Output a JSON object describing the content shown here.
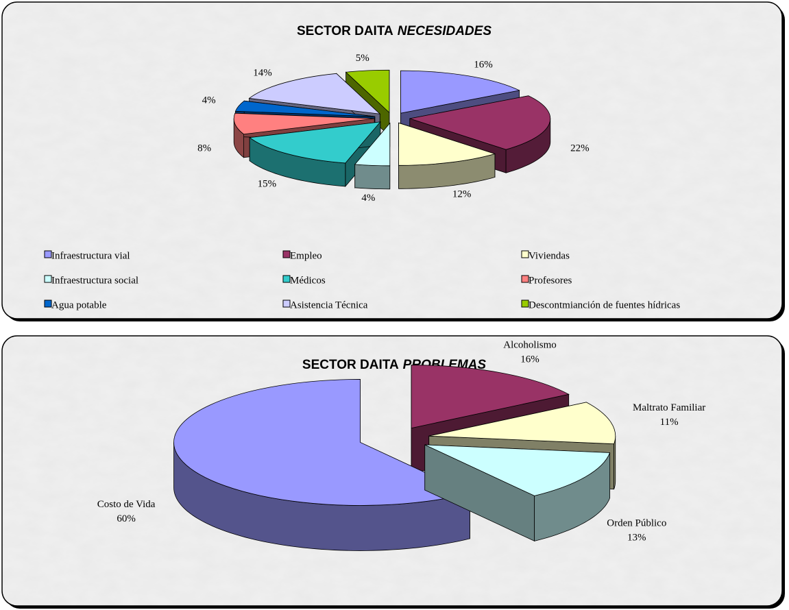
{
  "chart_data": [
    {
      "type": "pie",
      "title": "SECTOR DAITA",
      "title_italic": "NECESIDADES",
      "categories": [
        "Infraestructura vial",
        "Empleo",
        "Viviendas",
        "Infraestructura social",
        "Médicos",
        "Profesores",
        "Agua potable",
        "Asistencia Técnica",
        "Descontmianción de fuentes hídricas"
      ],
      "values": [
        16,
        22,
        12,
        4,
        15,
        8,
        4,
        14,
        5
      ],
      "value_labels": [
        "16%",
        "22%",
        "12%",
        "4%",
        "15%",
        "8%",
        "4%",
        "14%",
        "5%"
      ],
      "colors": [
        "#9999ff",
        "#993366",
        "#ffffcc",
        "#ccffff",
        "#33cccc",
        "#ff8080",
        "#0066cc",
        "#ccccff",
        "#99cc00"
      ],
      "legend": true,
      "label_categories": false
    },
    {
      "type": "pie",
      "title": "SECTOR DAITA",
      "title_italic": "PROBLEMAS",
      "categories": [
        "Alcoholismo",
        "Maltrato Familiar",
        "Orden Público",
        "Costo de Vida"
      ],
      "values": [
        16,
        11,
        13,
        60
      ],
      "value_labels": [
        "16%",
        "11%",
        "13%",
        "60%"
      ],
      "colors": [
        "#993366",
        "#ffffcc",
        "#ccffff",
        "#9999ff"
      ],
      "legend": false,
      "label_categories": true
    }
  ]
}
